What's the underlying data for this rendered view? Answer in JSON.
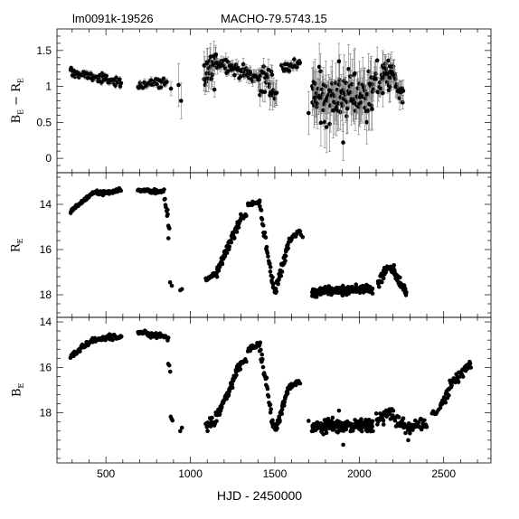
{
  "header": {
    "left_label": "lm0091k-19526",
    "right_label": "MACHO-79.5743.15"
  },
  "chart_data": {
    "type": "scatter",
    "xlabel": "HJD - 2450000",
    "xlim": [
      210,
      2780
    ],
    "x_ticks": [
      500,
      1000,
      1500,
      2000,
      2500
    ],
    "panels": [
      {
        "id": "color",
        "ylabel": "B_E − R_E",
        "ylabel_base": "B",
        "ylabel_sub1": "E",
        "ylabel_mid": " − R",
        "ylabel_sub2": "E",
        "ylim": [
          -0.2,
          1.8
        ],
        "inverted": false,
        "y_ticks": [
          0,
          0.5,
          1,
          1.5
        ],
        "y_tick_labels": [
          "0",
          "0.5",
          "1",
          "1.5"
        ],
        "error_bars": true,
        "segments": [
          {
            "x0": 290,
            "x1": 590,
            "y0": 1.2,
            "y1": 1.05,
            "err": 0.03,
            "scatter": 0.03,
            "n": 60
          },
          {
            "x0": 690,
            "x1": 860,
            "y0": 1.02,
            "y1": 1.07,
            "err": 0.04,
            "scatter": 0.04,
            "n": 30
          },
          {
            "x0": 1080,
            "x1": 1150,
            "y0": 1.1,
            "y1": 1.3,
            "err": 0.15,
            "scatter": 0.15,
            "n": 25
          },
          {
            "x0": 1150,
            "x1": 1400,
            "y0": 1.36,
            "y1": 1.12,
            "err": 0.07,
            "scatter": 0.05,
            "n": 55
          },
          {
            "x0": 1400,
            "x1": 1470,
            "y0": 1.12,
            "y1": 1.05,
            "err": 0.12,
            "scatter": 0.1,
            "n": 20
          },
          {
            "x0": 1470,
            "x1": 1510,
            "y0": 1.05,
            "y1": 0.9,
            "err": 0.15,
            "scatter": 0.12,
            "n": 12
          },
          {
            "x0": 1540,
            "x1": 1650,
            "y0": 1.25,
            "y1": 1.32,
            "err": 0.04,
            "scatter": 0.04,
            "n": 25
          },
          {
            "x0": 1720,
            "x1": 2080,
            "y0": 0.85,
            "y1": 0.9,
            "err": 0.28,
            "scatter": 0.17,
            "n": 120
          },
          {
            "x0": 2080,
            "x1": 2140,
            "y0": 1.05,
            "y1": 1.1,
            "err": 0.15,
            "scatter": 0.12,
            "n": 15
          },
          {
            "x0": 2140,
            "x1": 2210,
            "y0": 1.18,
            "y1": 1.15,
            "err": 0.15,
            "scatter": 0.1,
            "n": 30
          },
          {
            "x0": 2210,
            "x1": 2260,
            "y0": 1.0,
            "y1": 0.85,
            "err": 0.12,
            "scatter": 0.08,
            "n": 15
          }
        ],
        "points": [
          {
            "x": 930,
            "y": 1.02,
            "err": 0.3
          },
          {
            "x": 945,
            "y": 0.8,
            "err": 0.25
          },
          {
            "x": 885,
            "y": 0.97,
            "err": 0.1
          },
          {
            "x": 1700,
            "y": 0.63,
            "err": 0.3
          },
          {
            "x": 1905,
            "y": 0.22,
            "err": 0.25
          },
          {
            "x": 1880,
            "y": 1.35,
            "err": 0.25
          }
        ]
      },
      {
        "id": "red",
        "ylabel": "R_E",
        "ylabel_base": "R",
        "ylabel_sub1": "E",
        "ylim": [
          12.6,
          19.0
        ],
        "inverted": true,
        "y_ticks": [
          14,
          16,
          18
        ],
        "y_tick_labels": [
          "14",
          "16",
          "18"
        ],
        "error_bars": false,
        "segments": [
          {
            "x0": 290,
            "x1": 420,
            "y0": 14.3,
            "y1": 13.5,
            "scatter": 0.04,
            "n": 40
          },
          {
            "x0": 420,
            "x1": 590,
            "y0": 13.5,
            "y1": 13.4,
            "scatter": 0.06,
            "n": 45
          },
          {
            "x0": 690,
            "x1": 840,
            "y0": 13.35,
            "y1": 13.45,
            "scatter": 0.05,
            "n": 40
          },
          {
            "x0": 845,
            "x1": 875,
            "y0": 13.6,
            "y1": 15.0,
            "scatter": 0.15,
            "n": 12
          },
          {
            "x0": 1090,
            "x1": 1150,
            "y0": 17.35,
            "y1": 17.1,
            "scatter": 0.06,
            "n": 15
          },
          {
            "x0": 1150,
            "x1": 1300,
            "y0": 17.1,
            "y1": 14.6,
            "scatter": 0.1,
            "n": 70
          },
          {
            "x0": 1300,
            "x1": 1330,
            "y0": 14.6,
            "y1": 14.5,
            "scatter": 0.05,
            "n": 8
          },
          {
            "x0": 1340,
            "x1": 1410,
            "y0": 14.0,
            "y1": 13.9,
            "scatter": 0.05,
            "n": 20
          },
          {
            "x0": 1410,
            "x1": 1490,
            "y0": 14.0,
            "y1": 17.7,
            "scatter": 0.15,
            "n": 28
          },
          {
            "x0": 1490,
            "x1": 1510,
            "y0": 17.7,
            "y1": 17.9,
            "scatter": 0.08,
            "n": 8
          },
          {
            "x0": 1510,
            "x1": 1580,
            "y0": 17.6,
            "y1": 15.8,
            "scatter": 0.1,
            "n": 35
          },
          {
            "x0": 1580,
            "x1": 1650,
            "y0": 15.6,
            "y1": 15.2,
            "scatter": 0.07,
            "n": 18
          },
          {
            "x0": 1720,
            "x1": 2080,
            "y0": 17.9,
            "y1": 17.7,
            "scatter": 0.1,
            "n": 150
          },
          {
            "x0": 2110,
            "x1": 2160,
            "y0": 17.5,
            "y1": 16.9,
            "scatter": 0.12,
            "n": 18
          },
          {
            "x0": 2160,
            "x1": 2210,
            "y0": 16.8,
            "y1": 16.9,
            "scatter": 0.08,
            "n": 18
          },
          {
            "x0": 2210,
            "x1": 2280,
            "y0": 17.1,
            "y1": 17.95,
            "scatter": 0.1,
            "n": 25
          }
        ],
        "points": [
          {
            "x": 870,
            "y": 15.5
          },
          {
            "x": 880,
            "y": 17.45
          },
          {
            "x": 890,
            "y": 17.6
          },
          {
            "x": 940,
            "y": 17.8
          },
          {
            "x": 950,
            "y": 17.75
          },
          {
            "x": 1655,
            "y": 15.35
          },
          {
            "x": 1665,
            "y": 15.45
          }
        ]
      },
      {
        "id": "blue",
        "ylabel": "B_E",
        "ylabel_base": "B",
        "ylabel_sub1": "E",
        "ylim": [
          13.8,
          20.2
        ],
        "inverted": true,
        "y_ticks": [
          14,
          16,
          18
        ],
        "y_tick_labels": [
          "14",
          "16",
          "18"
        ],
        "error_bars": false,
        "segments": [
          {
            "x0": 290,
            "x1": 420,
            "y0": 15.5,
            "y1": 14.8,
            "scatter": 0.05,
            "n": 40
          },
          {
            "x0": 420,
            "x1": 590,
            "y0": 14.8,
            "y1": 14.65,
            "scatter": 0.07,
            "n": 45
          },
          {
            "x0": 690,
            "x1": 840,
            "y0": 14.45,
            "y1": 14.6,
            "scatter": 0.06,
            "n": 40
          },
          {
            "x0": 840,
            "x1": 870,
            "y0": 14.6,
            "y1": 14.7,
            "scatter": 0.05,
            "n": 6
          },
          {
            "x0": 870,
            "x1": 880,
            "y0": 15.8,
            "y1": 16.1,
            "scatter": 0.1,
            "n": 3
          },
          {
            "x0": 885,
            "x1": 895,
            "y0": 18.2,
            "y1": 18.3,
            "scatter": 0.05,
            "n": 3
          },
          {
            "x0": 1090,
            "x1": 1150,
            "y0": 18.6,
            "y1": 18.3,
            "scatter": 0.12,
            "n": 18
          },
          {
            "x0": 1150,
            "x1": 1300,
            "y0": 18.3,
            "y1": 15.8,
            "scatter": 0.12,
            "n": 75
          },
          {
            "x0": 1300,
            "x1": 1330,
            "y0": 15.8,
            "y1": 15.7,
            "scatter": 0.05,
            "n": 8
          },
          {
            "x0": 1340,
            "x1": 1410,
            "y0": 15.2,
            "y1": 15.0,
            "scatter": 0.05,
            "n": 20
          },
          {
            "x0": 1410,
            "x1": 1490,
            "y0": 15.1,
            "y1": 18.6,
            "scatter": 0.15,
            "n": 28
          },
          {
            "x0": 1490,
            "x1": 1510,
            "y0": 18.6,
            "y1": 18.7,
            "scatter": 0.08,
            "n": 8
          },
          {
            "x0": 1510,
            "x1": 1580,
            "y0": 18.6,
            "y1": 17.0,
            "scatter": 0.1,
            "n": 35
          },
          {
            "x0": 1580,
            "x1": 1650,
            "y0": 16.9,
            "y1": 16.6,
            "scatter": 0.07,
            "n": 18
          },
          {
            "x0": 1720,
            "x1": 2080,
            "y0": 18.6,
            "y1": 18.5,
            "scatter": 0.15,
            "n": 160
          },
          {
            "x0": 2100,
            "x1": 2200,
            "y0": 18.3,
            "y1": 18.0,
            "scatter": 0.15,
            "n": 30
          },
          {
            "x0": 2200,
            "x1": 2260,
            "y0": 18.2,
            "y1": 18.5,
            "scatter": 0.12,
            "n": 15
          },
          {
            "x0": 2260,
            "x1": 2400,
            "y0": 18.6,
            "y1": 18.5,
            "scatter": 0.15,
            "n": 40
          },
          {
            "x0": 2430,
            "x1": 2470,
            "y0": 18.1,
            "y1": 17.9,
            "scatter": 0.1,
            "n": 6
          },
          {
            "x0": 2480,
            "x1": 2560,
            "y0": 17.7,
            "y1": 16.6,
            "scatter": 0.12,
            "n": 30
          },
          {
            "x0": 2560,
            "x1": 2660,
            "y0": 16.6,
            "y1": 15.9,
            "scatter": 0.1,
            "n": 30
          }
        ],
        "points": [
          {
            "x": 940,
            "y": 18.8
          },
          {
            "x": 950,
            "y": 18.65
          },
          {
            "x": 1700,
            "y": 18.35
          },
          {
            "x": 1905,
            "y": 19.4
          },
          {
            "x": 1880,
            "y": 17.9
          },
          {
            "x": 2290,
            "y": 19.2
          },
          {
            "x": 2300,
            "y": 18.9
          }
        ]
      }
    ]
  }
}
